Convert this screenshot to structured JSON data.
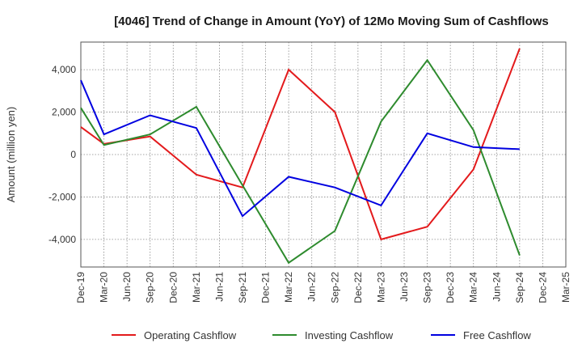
{
  "chart_data": {
    "type": "line",
    "title": "[4046]  Trend of Change in Amount (YoY) of 12Mo Moving Sum of Cashflows",
    "xlabel": "",
    "ylabel": "Amount (million yen)",
    "ylim": [
      -5300,
      5300
    ],
    "yticks": [
      -4000,
      -2000,
      0,
      2000,
      4000
    ],
    "ytick_labels": [
      "-4,000",
      "-2,000",
      "0",
      "2,000",
      "4,000"
    ],
    "grid": true,
    "legend_position": "bottom",
    "categories": [
      "Dec-19",
      "Mar-20",
      "Jun-20",
      "Sep-20",
      "Dec-20",
      "Mar-21",
      "Jun-21",
      "Sep-21",
      "Dec-21",
      "Mar-22",
      "Jun-22",
      "Sep-22",
      "Dec-22",
      "Mar-23",
      "Jun-23",
      "Sep-23",
      "Dec-23",
      "Mar-24",
      "Jun-24",
      "Sep-24",
      "Dec-24",
      "Mar-25"
    ],
    "series": [
      {
        "name": "Operating Cashflow",
        "color": "#e31a1c",
        "points": [
          [
            0,
            1300
          ],
          [
            1,
            500
          ],
          [
            3,
            850
          ],
          [
            5,
            -950
          ],
          [
            7,
            -1550
          ],
          [
            9,
            4000
          ],
          [
            11,
            2000
          ],
          [
            13,
            -4000
          ],
          [
            15,
            -3400
          ],
          [
            17,
            -700
          ],
          [
            19,
            5000
          ]
        ]
      },
      {
        "name": "Investing Cashflow",
        "color": "#2e8b2e",
        "points": [
          [
            0,
            2200
          ],
          [
            1,
            450
          ],
          [
            3,
            950
          ],
          [
            5,
            2250
          ],
          [
            7,
            -1450
          ],
          [
            9,
            -5100
          ],
          [
            11,
            -3600
          ],
          [
            13,
            1550
          ],
          [
            15,
            4450
          ],
          [
            17,
            1150
          ],
          [
            19,
            -4750
          ]
        ]
      },
      {
        "name": "Free Cashflow",
        "color": "#0000e0",
        "points": [
          [
            0,
            3500
          ],
          [
            1,
            950
          ],
          [
            3,
            1850
          ],
          [
            5,
            1250
          ],
          [
            7,
            -2900
          ],
          [
            9,
            -1050
          ],
          [
            11,
            -1550
          ],
          [
            13,
            -2400
          ],
          [
            15,
            1000
          ],
          [
            17,
            350
          ],
          [
            19,
            250
          ]
        ]
      }
    ]
  }
}
